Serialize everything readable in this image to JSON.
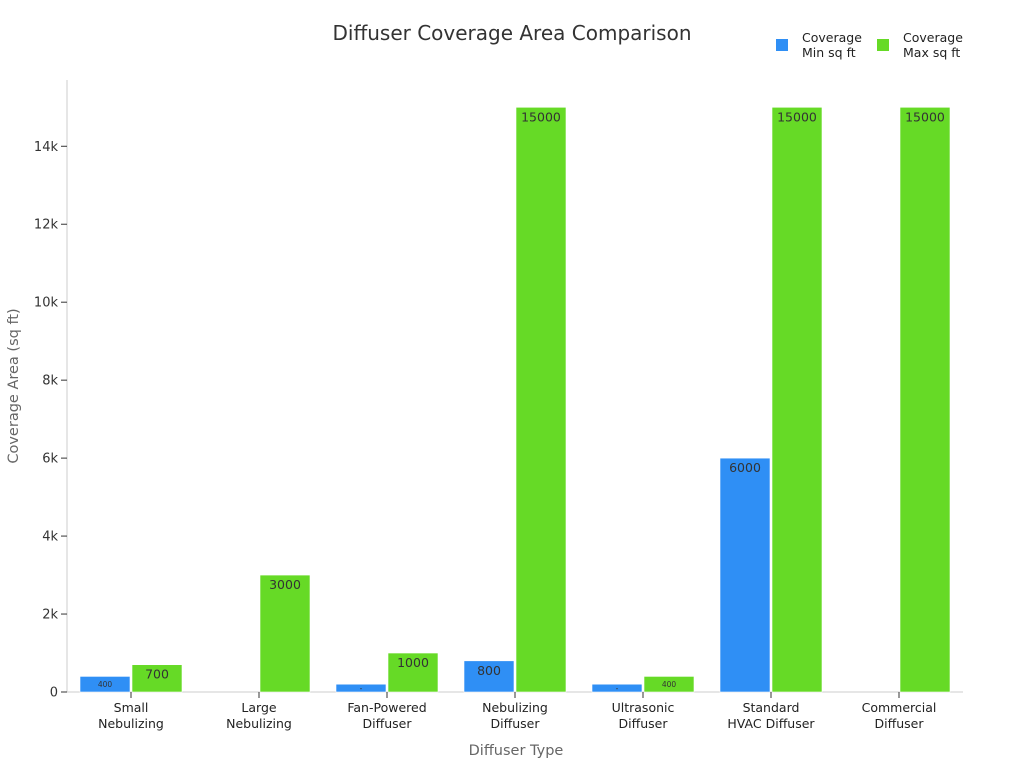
{
  "chart_data": {
    "type": "bar",
    "title": "Diffuser Coverage Area Comparison",
    "xlabel": "Diffuser Type",
    "ylabel": "Coverage Area (sq ft)",
    "ylim": [
      0,
      15700
    ],
    "yticks": [
      0,
      2000,
      4000,
      6000,
      8000,
      10000,
      12000,
      14000
    ],
    "ytick_labels": [
      "0",
      "2k",
      "4k",
      "6k",
      "8k",
      "10k",
      "12k",
      "14k"
    ],
    "grid": false,
    "legend_position": "top-right",
    "categories": [
      [
        "Small",
        "Nebulizing"
      ],
      [
        "Large",
        "Nebulizing"
      ],
      [
        "Fan-Powered",
        "Diffuser"
      ],
      [
        "Nebulizing",
        "Diffuser"
      ],
      [
        "Ultrasonic",
        "Diffuser"
      ],
      [
        "Standard",
        "HVAC Diffuser"
      ],
      [
        "Commercial",
        "Diffuser"
      ]
    ],
    "series": [
      {
        "name": [
          "Coverage",
          "Min sq ft"
        ],
        "color": "#2f8ff5",
        "values": [
          400,
          null,
          200,
          800,
          200,
          6000,
          null
        ],
        "labels": [
          "400",
          "",
          "-",
          "800",
          "-",
          "6000",
          ""
        ]
      },
      {
        "name": [
          "Coverage",
          "Max sq ft"
        ],
        "color": "#66da26",
        "values": [
          700,
          3000,
          1000,
          15000,
          400,
          15000,
          15000
        ],
        "labels": [
          "700",
          "3000",
          "1000",
          "15000",
          "400",
          "15000",
          "15000"
        ]
      }
    ]
  }
}
